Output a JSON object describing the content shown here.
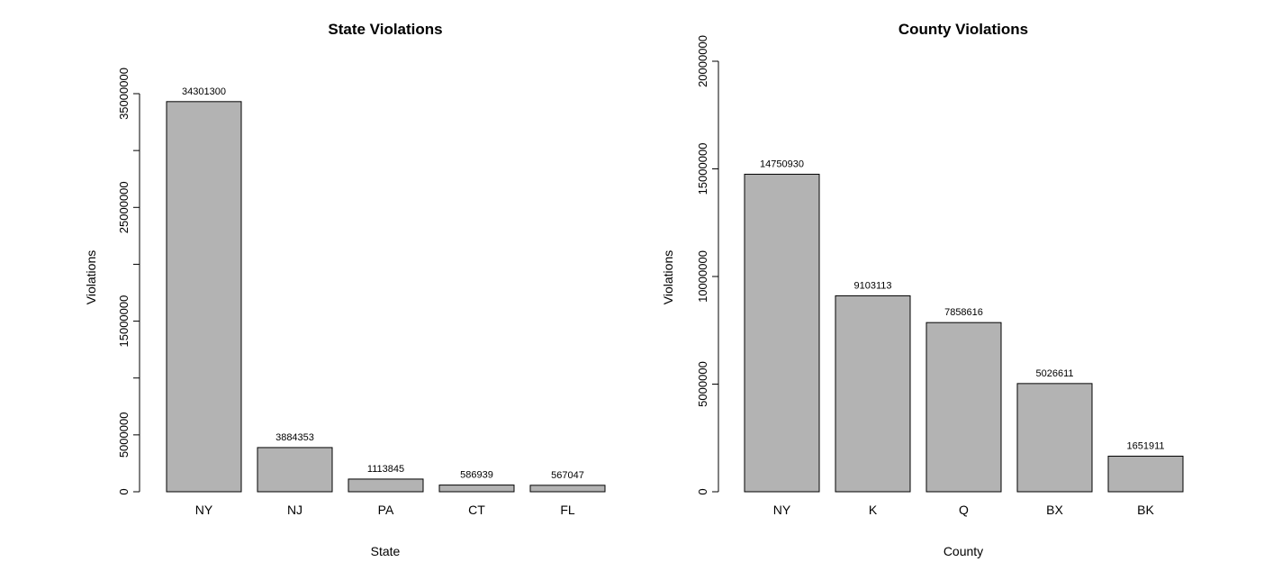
{
  "chart_data": [
    {
      "type": "bar",
      "title": "State Violations",
      "xlabel": "State",
      "ylabel": "Violations",
      "categories": [
        "NY",
        "NJ",
        "PA",
        "CT",
        "FL"
      ],
      "values": [
        34301300,
        3884353,
        1113845,
        586939,
        567047
      ],
      "data_labels": [
        "34301300",
        "3884353",
        "1113845",
        "586939",
        "567047"
      ],
      "ylim": [
        0,
        35000000
      ],
      "yticks": [
        0,
        5000000,
        10000000,
        15000000,
        20000000,
        25000000,
        30000000,
        35000000
      ],
      "ytick_labels": [
        "0",
        "5000000",
        "",
        "15000000",
        "",
        "25000000",
        "",
        "35000000"
      ],
      "bar_color": "#b3b3b3",
      "grid": false
    },
    {
      "type": "bar",
      "title": "County Violations",
      "xlabel": "County",
      "ylabel": "Violations",
      "categories": [
        "NY",
        "K",
        "Q",
        "BX",
        "BK"
      ],
      "values": [
        14750930,
        9103113,
        7858616,
        5026611,
        1651911
      ],
      "data_labels": [
        "14750930",
        "9103113",
        "7858616",
        "5026611",
        "1651911"
      ],
      "ylim": [
        0,
        20000000
      ],
      "yticks": [
        0,
        5000000,
        10000000,
        15000000,
        20000000
      ],
      "ytick_labels": [
        "0",
        "5000000",
        "10000000",
        "15000000",
        "20000000"
      ],
      "bar_color": "#b3b3b3",
      "grid": false
    }
  ]
}
